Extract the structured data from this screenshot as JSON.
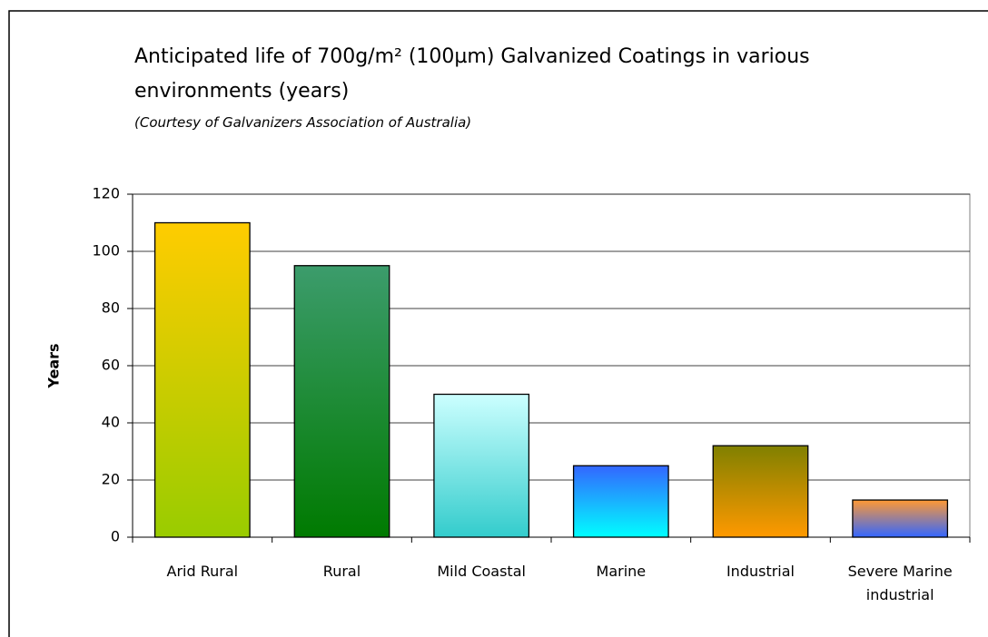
{
  "chart_data": {
    "type": "bar",
    "title": "Anticipated life of 700g/m² (100µm) Galvanized Coatings in various environments (years)",
    "subtitle": "(Courtesy of Galvanizers Association of Australia)",
    "y_label": "Years",
    "categories": [
      "Arid Rural",
      "Rural",
      "Mild Coastal",
      "Marine",
      "Industrial",
      "Severe Marine industrial"
    ],
    "values": [
      110,
      95,
      50,
      25,
      32,
      13
    ],
    "colors": [
      [
        "#ffcc00",
        "#99cc00"
      ],
      [
        "#3c9c6c",
        "#007a00"
      ],
      [
        "#ccffff",
        "#33cccc"
      ],
      [
        "#3366ff",
        "#00ffff"
      ],
      [
        "#808000",
        "#ff9900"
      ],
      [
        "#ff9933",
        "#3366ff"
      ]
    ],
    "ylim": [
      0,
      120
    ],
    "yticks": [
      0,
      20,
      40,
      60,
      80,
      100,
      120
    ],
    "grid": true
  }
}
